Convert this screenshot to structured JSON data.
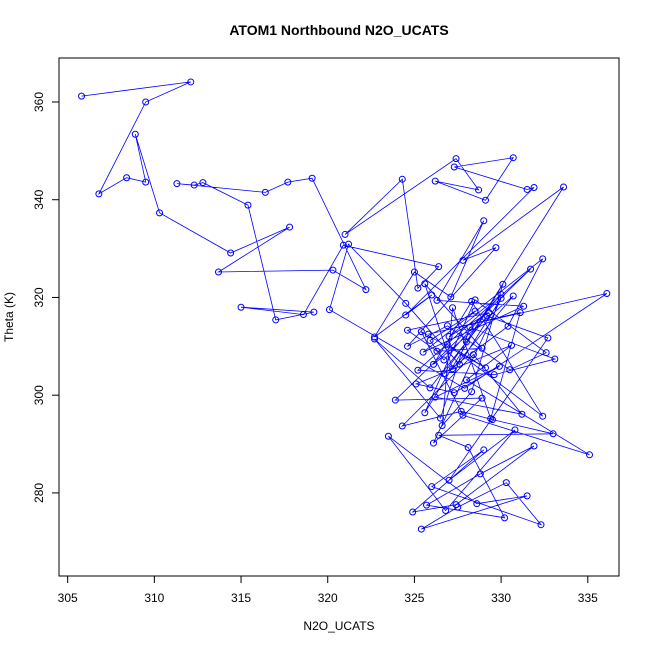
{
  "chart_data": {
    "type": "scatter",
    "title": "ATOM1 Northbound N2O_UCATS",
    "xlabel": "N2O_UCATS",
    "ylabel": "Theta (K)",
    "xlim": [
      304.5,
      336.8
    ],
    "ylim": [
      263,
      369
    ],
    "xticks": [
      305,
      310,
      315,
      320,
      325,
      330,
      335
    ],
    "yticks": [
      280,
      300,
      320,
      340,
      360
    ],
    "grid": false,
    "line_color": "#0000ff",
    "marker": "open-circle",
    "series": [
      {
        "name": "",
        "x": [
          305.8,
          312.1,
          309.5,
          306.8,
          308.4,
          309.5,
          308.9,
          310.3,
          314.4,
          317.8,
          313.7,
          320.3,
          322.2,
          319.1,
          317.7,
          316.4,
          311.3,
          312.3,
          312.8,
          315.4,
          317.0,
          319.2,
          315.0,
          318.6,
          320.9,
          326.4,
          325.2,
          324.3,
          321.0,
          327.4,
          328.7,
          326.2,
          329.1,
          330.7,
          327.3,
          331.5,
          331.9,
          324.5,
          326.0,
          322.7,
          325.0,
          327.1,
          329.0,
          326.3,
          331.3,
          325.5,
          332.4,
          330.4,
          326.7,
          328.0,
          333.6,
          327.8,
          329.7,
          324.6,
          326.9,
          330.5,
          332.6,
          328.5,
          325.6,
          330.1,
          328.3,
          326.6,
          327.2,
          329.4,
          331.1,
          325.8,
          336.1,
          327.9,
          320.1,
          321.2,
          324.5,
          327.6,
          330.0,
          326.1,
          328.9,
          323.9,
          331.7,
          325.2,
          329.6,
          333.1,
          328.2,
          326.5,
          322.7,
          325.9,
          329.2,
          332.7,
          327.0,
          330.8,
          326.8,
          323.5,
          328.6,
          331.5,
          325.4,
          327.5,
          330.3,
          332.3,
          326.0,
          329.0,
          324.9,
          327.4,
          331.9,
          328.8,
          325.7,
          330.2,
          328.1,
          326.4,
          333.0,
          329.5,
          327.7,
          324.3,
          328.4,
          331.2,
          326.2,
          329.9,
          327.3,
          325.1,
          330.6,
          328.0,
          335.1,
          327.8,
          325.4,
          329.1,
          326.9,
          332.4,
          328.3,
          326.1,
          330.7,
          327.2,
          325.6,
          328.9,
          326.3,
          324.6,
          329.3,
          327.0,
          330.0,
          326.7,
          325.9,
          328.5
        ],
        "y": [
          361.2,
          364.1,
          360.0,
          341.2,
          344.5,
          343.6,
          353.4,
          337.3,
          329.1,
          334.4,
          325.2,
          325.6,
          321.6,
          344.4,
          343.6,
          341.5,
          343.3,
          343.0,
          343.5,
          338.9,
          315.4,
          317.0,
          318.0,
          316.5,
          330.7,
          326.3,
          321.9,
          344.2,
          332.9,
          348.4,
          342.0,
          343.8,
          339.9,
          348.6,
          346.7,
          342.1,
          342.5,
          316.4,
          320.5,
          311.9,
          325.2,
          320.1,
          335.7,
          319.4,
          318.2,
          308.8,
          327.9,
          314.1,
          304.4,
          310.9,
          342.6,
          327.6,
          330.2,
          310.0,
          314.2,
          305.2,
          308.7,
          319.5,
          296.4,
          322.7,
          300.7,
          293.8,
          317.9,
          295.2,
          316.9,
          312.5,
          320.8,
          301.4,
          317.5,
          330.9,
          318.8,
          306.3,
          319.8,
          290.2,
          299.4,
          299.0,
          325.8,
          305.1,
          304.2,
          307.4,
          313.9,
          295.3,
          311.5,
          301.5,
          316.2,
          311.7,
          282.6,
          292.9,
          276.4,
          291.6,
          277.8,
          279.4,
          272.6,
          277.1,
          282.1,
          273.5,
          281.3,
          288.8,
          276.1,
          277.6,
          289.6,
          283.9,
          277.5,
          274.9,
          289.3,
          291.8,
          292.1,
          295.0,
          296.7,
          293.7,
          308.3,
          296.1,
          299.6,
          305.9,
          300.5,
          302.3,
          310.2,
          303.1,
          287.8,
          295.9,
          313.0,
          305.6,
          310.4,
          295.7,
          319.2,
          306.3,
          320.3,
          305.4,
          322.8,
          309.6,
          309.0,
          313.3,
          316.9,
          312.0,
          320.6,
          307.2,
          311.2,
          317.2
        ]
      }
    ]
  }
}
